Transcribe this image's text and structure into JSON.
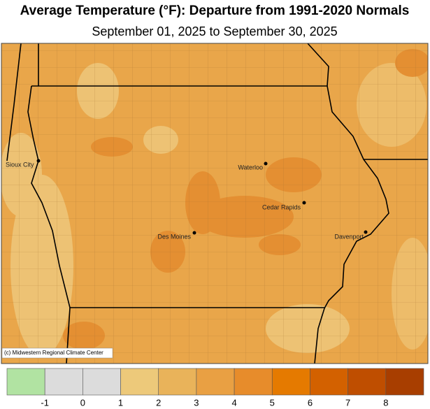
{
  "header": {
    "title": "Average Temperature (°F): Departure from 1991-2020 Normals",
    "subtitle": "September 01, 2025 to September 30, 2025"
  },
  "map": {
    "cities": [
      "Sioux City",
      "Waterloo",
      "Cedar Rapids",
      "Des Moines",
      "Davenport"
    ],
    "credit": "(c) Midwestern Regional Climate Center"
  },
  "legend": {
    "ticks": [
      -1,
      0,
      1,
      2,
      3,
      4,
      5,
      6,
      7,
      8
    ],
    "colors": [
      "#b1e3a2",
      "#dcdcdc",
      "#dcdcdc",
      "#edc97a",
      "#e9b35a",
      "#e9a043",
      "#e78c2b",
      "#e57a00",
      "#d36100",
      "#bf4e00",
      "#a83e00"
    ]
  }
}
